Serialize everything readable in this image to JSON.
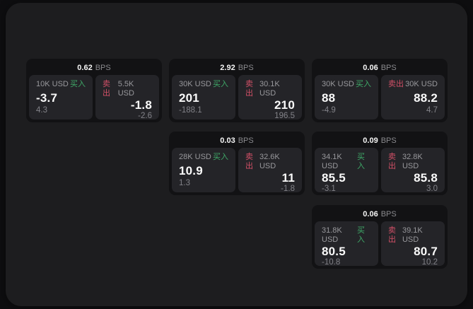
{
  "labels": {
    "bps": "BPS",
    "buy": "买入",
    "sell": "卖出"
  },
  "theme": {
    "page_bg": "#0e0e10",
    "window_bg": "#1d1d1f",
    "card_bg": "#121214",
    "panel_bg": "#242428",
    "text_primary": "#fafafa",
    "text_muted": "#98989c",
    "buy_color": "#3fa968",
    "sell_color": "#d25067"
  },
  "cards": [
    {
      "bps": "0.62",
      "buy": {
        "amount": "10K USD",
        "value": "-3.7",
        "sub": "4.3"
      },
      "sell": {
        "amount": "5.5K USD",
        "value": "-1.8",
        "sub": "-2.6"
      }
    },
    {
      "bps": "2.92",
      "buy": {
        "amount": "30K USD",
        "value": "201",
        "sub": "-188.1"
      },
      "sell": {
        "amount": "30.1K USD",
        "value": "210",
        "sub": "196.5"
      }
    },
    {
      "bps": "0.06",
      "buy": {
        "amount": "30K USD",
        "value": "88",
        "sub": "-4.9"
      },
      "sell": {
        "amount": "30K USD",
        "value": "88.2",
        "sub": "4.7"
      }
    },
    {
      "bps": "0.03",
      "buy": {
        "amount": "28K USD",
        "value": "10.9",
        "sub": "1.3"
      },
      "sell": {
        "amount": "32.6K USD",
        "value": "11",
        "sub": "-1.8"
      }
    },
    {
      "bps": "0.09",
      "buy": {
        "amount": "34.1K USD",
        "value": "85.5",
        "sub": "-3.1"
      },
      "sell": {
        "amount": "32.8K USD",
        "value": "85.8",
        "sub": "3.0"
      }
    },
    {
      "bps": "0.06",
      "buy": {
        "amount": "31.8K USD",
        "value": "80.5",
        "sub": "-10.8"
      },
      "sell": {
        "amount": "39.1K USD",
        "value": "80.7",
        "sub": "10.2"
      }
    }
  ]
}
